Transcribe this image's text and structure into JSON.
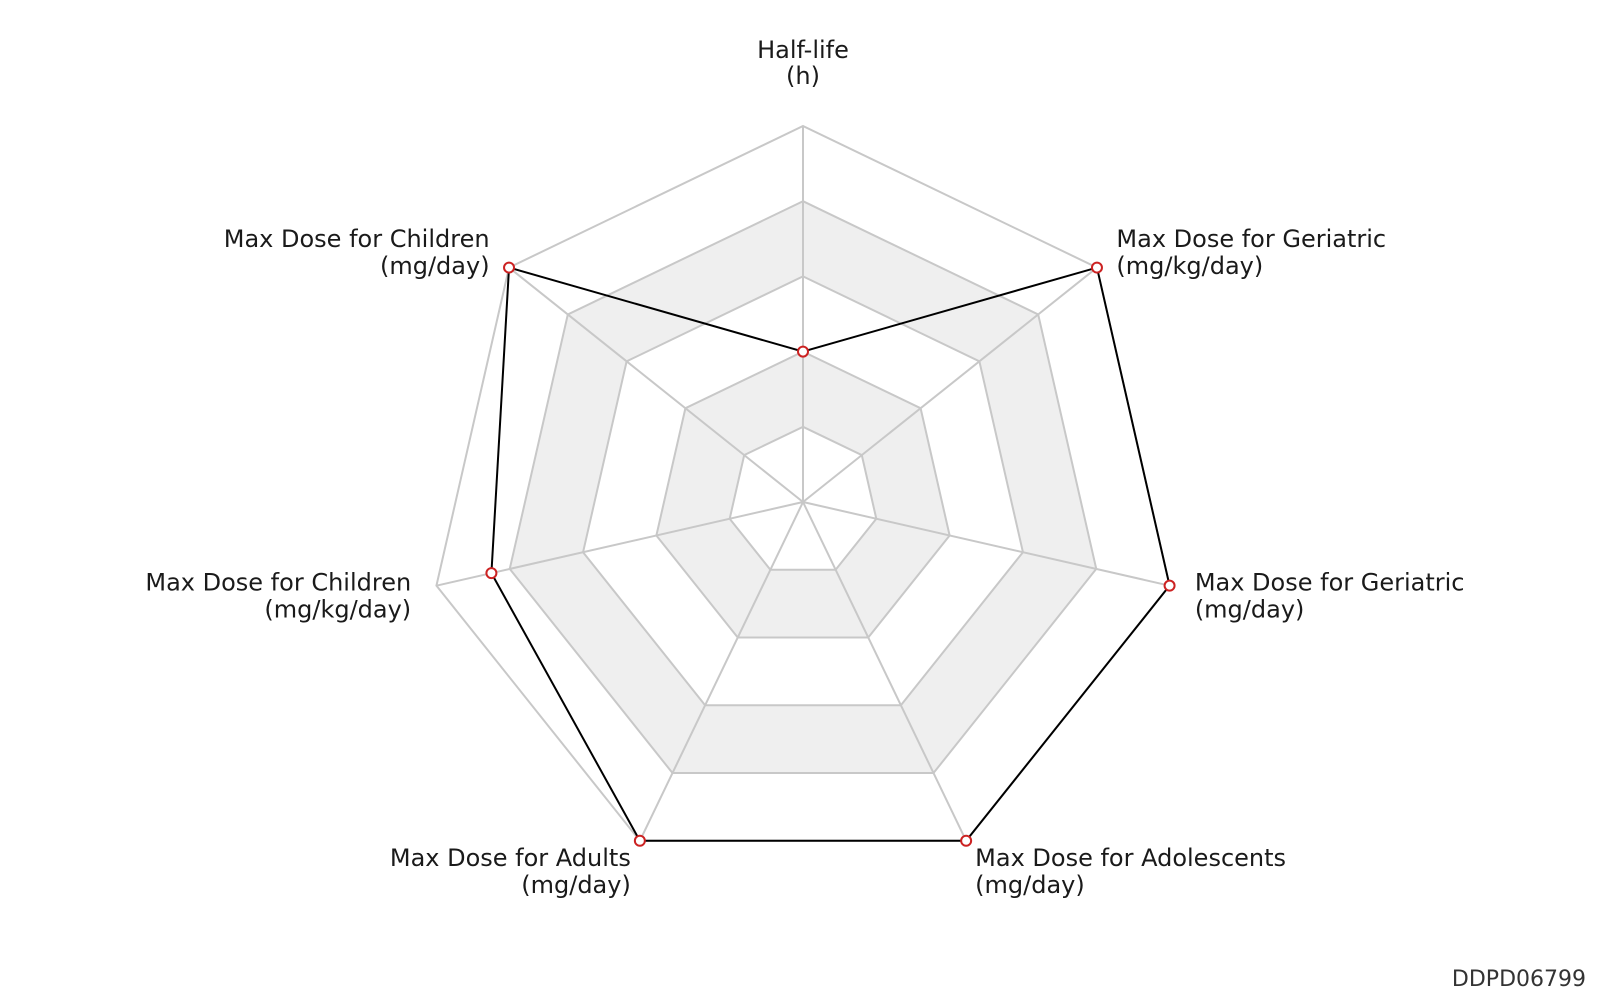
{
  "chart_data": {
    "type": "radar",
    "axes": [
      {
        "name": "Half-life",
        "unit": "(h)"
      },
      {
        "name": "Max Dose for Geriatric",
        "unit": "(mg/kg/day)"
      },
      {
        "name": "Max Dose for Geriatric",
        "unit": "(mg/day)"
      },
      {
        "name": "Max Dose for Adolescents",
        "unit": "(mg/day)"
      },
      {
        "name": "Max Dose for Adults",
        "unit": "(mg/day)"
      },
      {
        "name": "Max Dose for Children",
        "unit": "(mg/kg/day)"
      },
      {
        "name": "Max Dose for Children",
        "unit": "(mg/day)"
      }
    ],
    "range": [
      0,
      1
    ],
    "levels": 5,
    "series": [
      {
        "values": [
          0.4,
          1.0,
          1.0,
          1.0,
          1.0,
          0.85,
          1.0
        ]
      }
    ],
    "colors": {
      "line": "#000000",
      "marker": "#cc2222",
      "grid": "#c8c8c8",
      "band": "#efefef"
    }
  },
  "footer": {
    "id": "DDPD06799"
  }
}
